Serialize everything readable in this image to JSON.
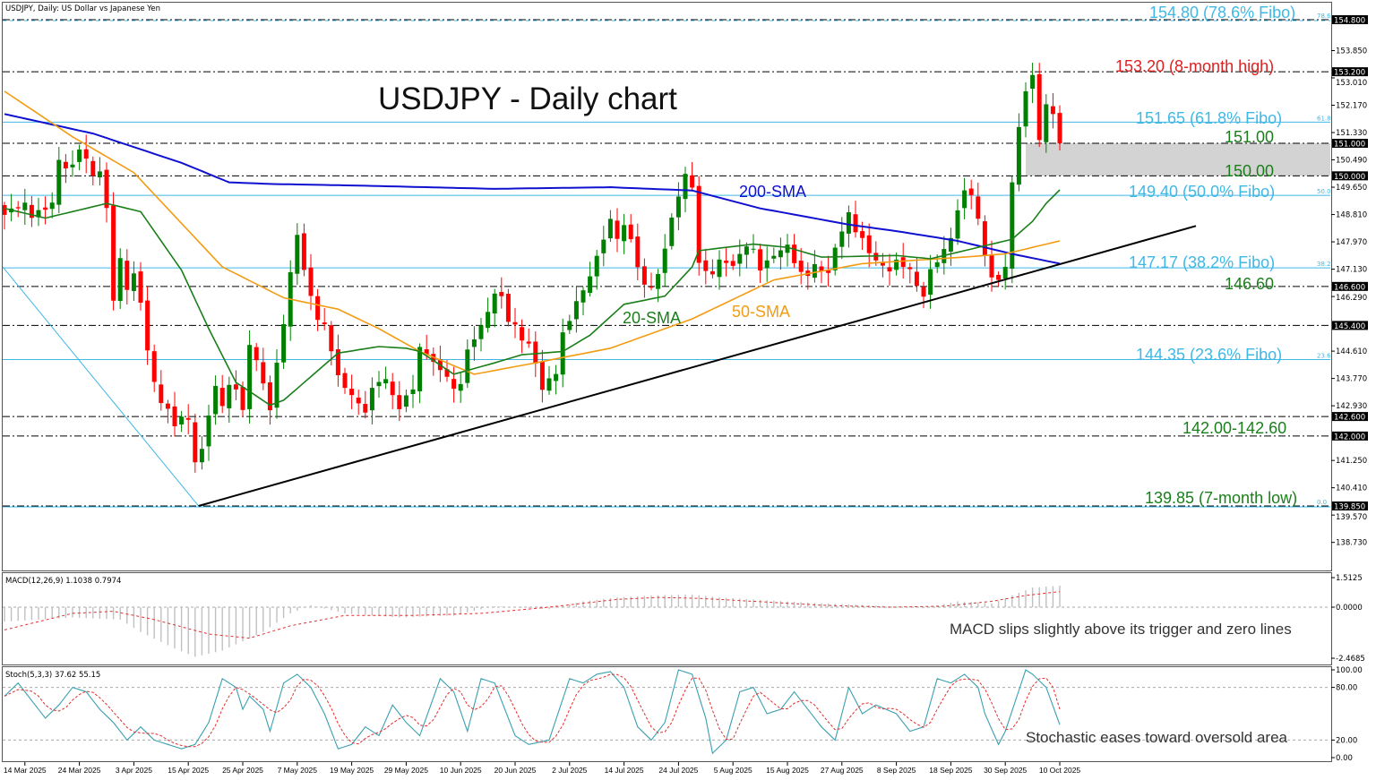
{
  "header": {
    "symbol_label": "USDJPY, Daily:  US Dollar vs Japanese Yen"
  },
  "colors": {
    "up": "#008000",
    "down": "#ff0000",
    "sma20": "#1a7f1a",
    "sma50": "#f39c12",
    "sma200": "#1010d0",
    "fibo": "#3fb8e6",
    "level": "#000000",
    "trend": "#000000",
    "zone": "#d3d3d3",
    "macd_hist": "#c0c0c0",
    "macd_signal": "#e03030",
    "stoch_main": "#3aa0b0",
    "stoch_signal": "#e03030"
  },
  "chart_data": [
    {
      "type": "candlestick",
      "title": "USDJPY - Daily chart",
      "bar_count": 156,
      "close_keypoints": [
        [
          0,
          148.8
        ],
        [
          2,
          149.0
        ],
        [
          4.6,
          148.9
        ],
        [
          7.2,
          149.2
        ],
        [
          7.9,
          150.5
        ],
        [
          9.9,
          150.3
        ],
        [
          11.2,
          150.9
        ],
        [
          12.5,
          150.0
        ],
        [
          13.8,
          150.3
        ],
        [
          14.9,
          149.4
        ],
        [
          15.8,
          145.9
        ],
        [
          17.1,
          147.6
        ],
        [
          18.4,
          146.0
        ],
        [
          19.3,
          147.5
        ],
        [
          20.4,
          145.3
        ],
        [
          21.3,
          144.3
        ],
        [
          22.4,
          143.3
        ],
        [
          23.7,
          143.0
        ],
        [
          25,
          142.3
        ],
        [
          27,
          142.5
        ],
        [
          28.3,
          140.8
        ],
        [
          29.6,
          142.2
        ],
        [
          30.9,
          143.6
        ],
        [
          32.2,
          142.8
        ],
        [
          33.6,
          143.8
        ],
        [
          34.9,
          142.6
        ],
        [
          36.2,
          145.2
        ],
        [
          37.5,
          144.0
        ],
        [
          38.8,
          142.5
        ],
        [
          40.1,
          144.4
        ],
        [
          41.4,
          145.9
        ],
        [
          42.8,
          148.4
        ],
        [
          44.1,
          147.0
        ],
        [
          45.4,
          146.0
        ],
        [
          47.4,
          145.3
        ],
        [
          49.3,
          143.6
        ],
        [
          51.3,
          143.2
        ],
        [
          52.6,
          142.5
        ],
        [
          54.6,
          143.6
        ],
        [
          55.9,
          143.8
        ],
        [
          57.9,
          142.8
        ],
        [
          59.9,
          143.3
        ],
        [
          61.2,
          145.0
        ],
        [
          63.2,
          144.2
        ],
        [
          65.1,
          143.8
        ],
        [
          66.4,
          143.3
        ],
        [
          68.4,
          145.0
        ],
        [
          70.4,
          145.5
        ],
        [
          72.4,
          146.6
        ],
        [
          73.7,
          145.6
        ],
        [
          75.7,
          145.0
        ],
        [
          77.6,
          144.6
        ],
        [
          78.9,
          143.4
        ],
        [
          80.9,
          143.8
        ],
        [
          82.5,
          145.5
        ],
        [
          83.6,
          146.0
        ],
        [
          85.5,
          146.7
        ],
        [
          86.8,
          147.4
        ],
        [
          88.8,
          148.8
        ],
        [
          90.1,
          148.0
        ],
        [
          91.4,
          148.7
        ],
        [
          92.8,
          147.3
        ],
        [
          94.1,
          146.6
        ],
        [
          96.1,
          147.0
        ],
        [
          97.4,
          148.1
        ],
        [
          99.3,
          149.6
        ],
        [
          100.7,
          150.6
        ],
        [
          101.7,
          147.4
        ],
        [
          103.3,
          147.0
        ],
        [
          105.3,
          147.5
        ],
        [
          107.2,
          147.2
        ],
        [
          109.2,
          147.9
        ],
        [
          111.2,
          147.0
        ],
        [
          113.2,
          147.6
        ],
        [
          115.1,
          147.9
        ],
        [
          117.1,
          147.0
        ],
        [
          119.1,
          147.3
        ],
        [
          121.1,
          147.0
        ],
        [
          123.7,
          149.0
        ],
        [
          125.7,
          148.2
        ],
        [
          127.6,
          147.5
        ],
        [
          129.6,
          147.0
        ],
        [
          131.6,
          147.3
        ],
        [
          133.6,
          146.8
        ],
        [
          134.9,
          146.2
        ],
        [
          136.2,
          147.3
        ],
        [
          138.2,
          147.8
        ],
        [
          140.1,
          149.0
        ],
        [
          141.4,
          149.8
        ],
        [
          143.4,
          148.4
        ],
        [
          144.7,
          146.9
        ],
        [
          146,
          146.8
        ],
        [
          147,
          147.2
        ],
        [
          148,
          149.8
        ],
        [
          149,
          151.5
        ],
        [
          150,
          152.6
        ],
        [
          151,
          153.1
        ],
        [
          152,
          151.1
        ],
        [
          153,
          152.2
        ],
        [
          154,
          151.9
        ],
        [
          155,
          151.0
        ]
      ],
      "sma20": [
        [
          0,
          149.0
        ],
        [
          6,
          148.7
        ],
        [
          15,
          149.15
        ],
        [
          20,
          148.9
        ],
        [
          26,
          147.1
        ],
        [
          30,
          145.3
        ],
        [
          34,
          143.65
        ],
        [
          39,
          142.95
        ],
        [
          41,
          143.1
        ],
        [
          49,
          144.55
        ],
        [
          55,
          144.75
        ],
        [
          59,
          144.7
        ],
        [
          61,
          144.6
        ],
        [
          66,
          143.9
        ],
        [
          72,
          144.25
        ],
        [
          76,
          144.5
        ],
        [
          82,
          144.6
        ],
        [
          86,
          145.1
        ],
        [
          91,
          146.05
        ],
        [
          97,
          146.3
        ],
        [
          101,
          147.2
        ],
        [
          102,
          147.7
        ],
        [
          110,
          147.9
        ],
        [
          115,
          147.8
        ],
        [
          120,
          147.5
        ],
        [
          131,
          147.55
        ],
        [
          136,
          147.45
        ],
        [
          141,
          147.7
        ],
        [
          145,
          147.9
        ],
        [
          148,
          148.05
        ],
        [
          151,
          148.6
        ],
        [
          153,
          149.15
        ],
        [
          155,
          149.57
        ]
      ],
      "sma50": [
        [
          0,
          152.6
        ],
        [
          10,
          151.2
        ],
        [
          19,
          150.1
        ],
        [
          32,
          147.2
        ],
        [
          41,
          146.25
        ],
        [
          49,
          145.9
        ],
        [
          55,
          145.3
        ],
        [
          61,
          144.6
        ],
        [
          69,
          143.9
        ],
        [
          78,
          144.25
        ],
        [
          89,
          144.7
        ],
        [
          101,
          145.6
        ],
        [
          113,
          146.8
        ],
        [
          126,
          147.3
        ],
        [
          141,
          147.5
        ],
        [
          147,
          147.6
        ],
        [
          155,
          148.0
        ]
      ],
      "sma200": [
        [
          0,
          151.9
        ],
        [
          13,
          151.3
        ],
        [
          26,
          150.4
        ],
        [
          33,
          149.8
        ],
        [
          39,
          149.75
        ],
        [
          52,
          149.7
        ],
        [
          72,
          149.6
        ],
        [
          89,
          149.65
        ],
        [
          101,
          149.55
        ],
        [
          111,
          149.0
        ],
        [
          124,
          148.5
        ],
        [
          131,
          148.3
        ],
        [
          140,
          148.0
        ],
        [
          148,
          147.6
        ],
        [
          155,
          147.3
        ]
      ],
      "levels": [
        154.8,
        153.2,
        151.0,
        150.0,
        146.6,
        145.4,
        142.6,
        142.0,
        139.85
      ],
      "fibo_levels": [
        {
          "price": 154.8,
          "pct": "78.6"
        },
        {
          "price": 151.65,
          "pct": "61.8"
        },
        {
          "price": 149.4,
          "pct": "50.0"
        },
        {
          "price": 147.17,
          "pct": "38.2"
        },
        {
          "price": 144.35,
          "pct": "23.6"
        },
        {
          "price": 139.85,
          "pct": "0.0"
        }
      ],
      "fibo_swing": [
        [
          0,
          150.55
        ],
        [
          28.5,
          139.85
        ]
      ],
      "trendline": [
        [
          28.5,
          139.85
        ],
        [
          174,
          148.4
        ]
      ],
      "zone": [
        150.0,
        151.0
      ],
      "y_ticks_plain": [
        "153.850",
        "153.010",
        "152.170",
        "151.330",
        "150.490",
        "149.650",
        "148.810",
        "147.970",
        "147.130",
        "146.290",
        "144.610",
        "143.770",
        "142.930",
        "141.250",
        "140.410",
        "139.570",
        "138.730"
      ],
      "y_ticks_highlight": [
        "154.800",
        "153.200",
        "151.000",
        "150.000",
        "146.600",
        "145.400",
        "142.600",
        "142.000",
        "139.850"
      ],
      "ylim": [
        138.4,
        155.4
      ],
      "x_tick_labels": [
        "14 Mar 2025",
        "24 Mar 2025",
        "3 Apr 2025",
        "15 Apr 2025",
        "25 Apr 2025",
        "7 May 2025",
        "19 May 2025",
        "29 May 2025",
        "10 Jun 2025",
        "20 Jun 2025",
        "2 Jul 2025",
        "14 Jul 2025",
        "24 Jul 2025",
        "5 Aug 2025",
        "15 Aug 2025",
        "27 Aug 2025",
        "8 Sep 2025",
        "18 Sep 2025",
        "30 Sep 2025",
        "10 Oct 2025"
      ],
      "annotations": {
        "a1548": "154.80 (78.6% Fibo)",
        "a1532": "153.20  (8-month high)",
        "a15165": "151.65 (61.8% Fibo)",
        "a151": "151.00",
        "a150": "150.00",
        "a1494": "149.40 (50.0% Fibo)",
        "a14717": "147.17 (38.2% Fibo)",
        "a1466": "146.60",
        "a14435": "144.35 (23.6% Fibo)",
        "a142": "142.00-142.60",
        "a13985": "139.85 (7-month low)",
        "sma200": "200-SMA",
        "sma20": "20-SMA",
        "sma50": "50-SMA"
      }
    },
    {
      "type": "bar+line",
      "title": "MACD(12,26,9) 1.1038 0.7974",
      "y_ticks": [
        "1.5125",
        "0.0000",
        "-2.4685"
      ],
      "ylim": [
        -2.4685,
        1.5125
      ],
      "histogram": [
        [
          0,
          -0.7
        ],
        [
          10,
          -0.5
        ],
        [
          17,
          -0.6
        ],
        [
          20,
          -1.2
        ],
        [
          25,
          -2.0
        ],
        [
          28,
          -2.4
        ],
        [
          32,
          -2.1
        ],
        [
          38,
          -1.2
        ],
        [
          42,
          -0.3
        ],
        [
          45,
          0.1
        ],
        [
          50,
          -0.3
        ],
        [
          58,
          -0.5
        ],
        [
          66,
          -0.4
        ],
        [
          72,
          0.05
        ],
        [
          80,
          -0.1
        ],
        [
          85,
          0.3
        ],
        [
          90,
          0.5
        ],
        [
          95,
          0.6
        ],
        [
          101,
          0.65
        ],
        [
          105,
          0.5
        ],
        [
          112,
          0.35
        ],
        [
          120,
          0.2
        ],
        [
          130,
          0.05
        ],
        [
          135,
          -0.05
        ],
        [
          140,
          0.3
        ],
        [
          145,
          0.2
        ],
        [
          148,
          0.6
        ],
        [
          151,
          1.0
        ],
        [
          155,
          1.1038
        ]
      ],
      "signal": [
        [
          0,
          -1.1
        ],
        [
          10,
          -0.3
        ],
        [
          16,
          -0.2
        ],
        [
          22,
          -0.6
        ],
        [
          30,
          -1.3
        ],
        [
          36,
          -1.5
        ],
        [
          42,
          -0.9
        ],
        [
          50,
          -0.4
        ],
        [
          60,
          -0.4
        ],
        [
          70,
          -0.3
        ],
        [
          80,
          0
        ],
        [
          90,
          0.4
        ],
        [
          96,
          0.5
        ],
        [
          102,
          0.45
        ],
        [
          110,
          0.3
        ],
        [
          120,
          0.1
        ],
        [
          130,
          0.0
        ],
        [
          138,
          0.05
        ],
        [
          145,
          0.3
        ],
        [
          150,
          0.6
        ],
        [
          155,
          0.7974
        ]
      ],
      "note": "MACD slips slightly above its trigger and zero lines"
    },
    {
      "type": "line",
      "title": "Stoch(5,3,3) 37.62 55.15",
      "y_ticks": [
        "100.00",
        "80.00",
        "20.00",
        "0.00"
      ],
      "ylim": [
        0,
        100
      ],
      "levels": [
        80,
        20
      ],
      "main": [
        [
          0,
          70
        ],
        [
          2,
          85
        ],
        [
          4,
          65
        ],
        [
          6,
          45
        ],
        [
          8,
          60
        ],
        [
          10,
          80
        ],
        [
          12,
          75
        ],
        [
          14,
          55
        ],
        [
          16,
          40
        ],
        [
          18,
          20
        ],
        [
          20,
          35
        ],
        [
          22,
          20
        ],
        [
          24,
          15
        ],
        [
          26,
          10
        ],
        [
          28,
          15
        ],
        [
          30,
          40
        ],
        [
          32,
          90
        ],
        [
          34,
          80
        ],
        [
          35,
          55
        ],
        [
          36,
          70
        ],
        [
          38,
          55
        ],
        [
          39,
          30
        ],
        [
          41,
          85
        ],
        [
          43,
          95
        ],
        [
          45,
          80
        ],
        [
          47,
          50
        ],
        [
          49,
          10
        ],
        [
          51,
          15
        ],
        [
          53,
          35
        ],
        [
          55,
          25
        ],
        [
          57,
          60
        ],
        [
          59,
          40
        ],
        [
          61,
          25
        ],
        [
          64,
          90
        ],
        [
          66,
          75
        ],
        [
          68,
          30
        ],
        [
          70,
          90
        ],
        [
          72,
          85
        ],
        [
          75,
          25
        ],
        [
          77,
          15
        ],
        [
          80,
          20
        ],
        [
          83,
          90
        ],
        [
          85,
          85
        ],
        [
          87,
          95
        ],
        [
          89,
          98
        ],
        [
          91,
          80
        ],
        [
          93,
          35
        ],
        [
          95,
          20
        ],
        [
          97,
          40
        ],
        [
          99,
          100
        ],
        [
          101,
          95
        ],
        [
          103,
          45
        ],
        [
          104,
          5
        ],
        [
          106,
          20
        ],
        [
          108,
          75
        ],
        [
          110,
          80
        ],
        [
          112,
          50
        ],
        [
          114,
          55
        ],
        [
          116,
          75
        ],
        [
          118,
          55
        ],
        [
          120,
          35
        ],
        [
          122,
          20
        ],
        [
          124,
          80
        ],
        [
          126,
          50
        ],
        [
          128,
          60
        ],
        [
          131,
          50
        ],
        [
          133,
          30
        ],
        [
          135,
          35
        ],
        [
          137,
          90
        ],
        [
          139,
          85
        ],
        [
          141,
          95
        ],
        [
          143,
          80
        ],
        [
          144,
          50
        ],
        [
          146,
          15
        ],
        [
          147,
          30
        ],
        [
          150,
          100
        ],
        [
          151,
          95
        ],
        [
          153,
          80
        ],
        [
          155,
          37.62
        ]
      ],
      "signal_last": 55.15,
      "note": "Stochastic eases toward oversold area"
    }
  ]
}
